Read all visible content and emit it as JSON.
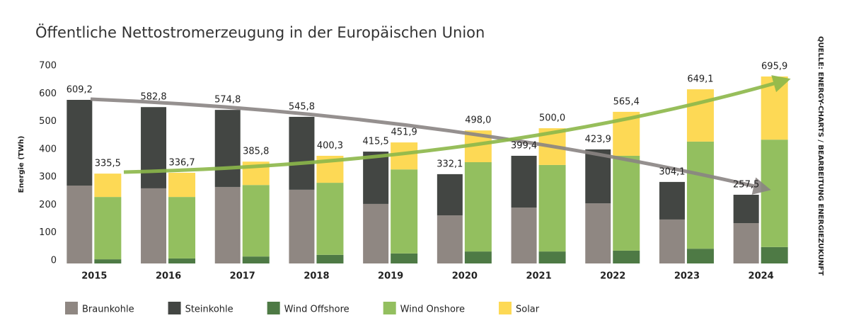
{
  "chart_data": {
    "type": "grouped-stacked-bar",
    "title": "Öffentliche Nettostromerzeugung in der Europäischen Union",
    "y_label": "Energie (TWh)",
    "source": "QUELLE: ENERGY-CHARTS / BEARBEITUNG ENERGIEZUKUNFT",
    "categories": [
      "2015",
      "2016",
      "2017",
      "2018",
      "2019",
      "2020",
      "2021",
      "2022",
      "2023",
      "2024"
    ],
    "ylim": [
      0,
      700
    ],
    "yticks": [
      0,
      100,
      200,
      300,
      400,
      500,
      600,
      700
    ],
    "groups": [
      {
        "series": [
          {
            "name": "Braunkohle",
            "color": "#8f8782",
            "values": [
              280,
              270,
              275,
              265,
              214,
              173,
              201,
              216,
              158,
              145
            ]
          },
          {
            "name": "Steinkohle",
            "color": "#434643",
            "values": [
              308,
              292,
              277,
              262,
              188,
              148,
              186,
              194,
              135,
              102
            ]
          }
        ],
        "totals": {
          "color": "#222222",
          "values": [
            609.2,
            582.8,
            574.8,
            545.8,
            415.5,
            332.1,
            399.4,
            423.9,
            304.1,
            257.5
          ],
          "value_labels": [
            "609,2",
            "582,8",
            "574,8",
            "545,8",
            "415,5",
            "332,1",
            "399,4",
            "423,9",
            "304,1",
            "257,5"
          ]
        }
      },
      {
        "series": [
          {
            "name": "Wind Offshore",
            "color": "#4e7a45",
            "values": [
              15,
              18,
              25,
              31,
              36,
              43,
              43,
              46,
              53,
              59
            ]
          },
          {
            "name": "Wind Onshore",
            "color": "#93bf5f",
            "values": [
              224,
              221,
              257,
              259,
              302,
              321,
              311,
              341,
              385,
              386
            ]
          },
          {
            "name": "Solar",
            "color": "#fdd955",
            "values": [
              84,
              87,
              84,
              97,
              97,
              114,
              132,
              158,
              188,
              227
            ]
          }
        ],
        "totals": {
          "color": "#8cb84a",
          "values": [
            335.5,
            336.7,
            385.8,
            400.3,
            451.9,
            498.0,
            500.0,
            565.4,
            649.1,
            695.9
          ],
          "value_labels": [
            "335,5",
            "336,7",
            "385,8",
            "400,3",
            "451,9",
            "498,0",
            "500,0",
            "565,4",
            "649,1",
            "695,9"
          ]
        }
      }
    ]
  }
}
